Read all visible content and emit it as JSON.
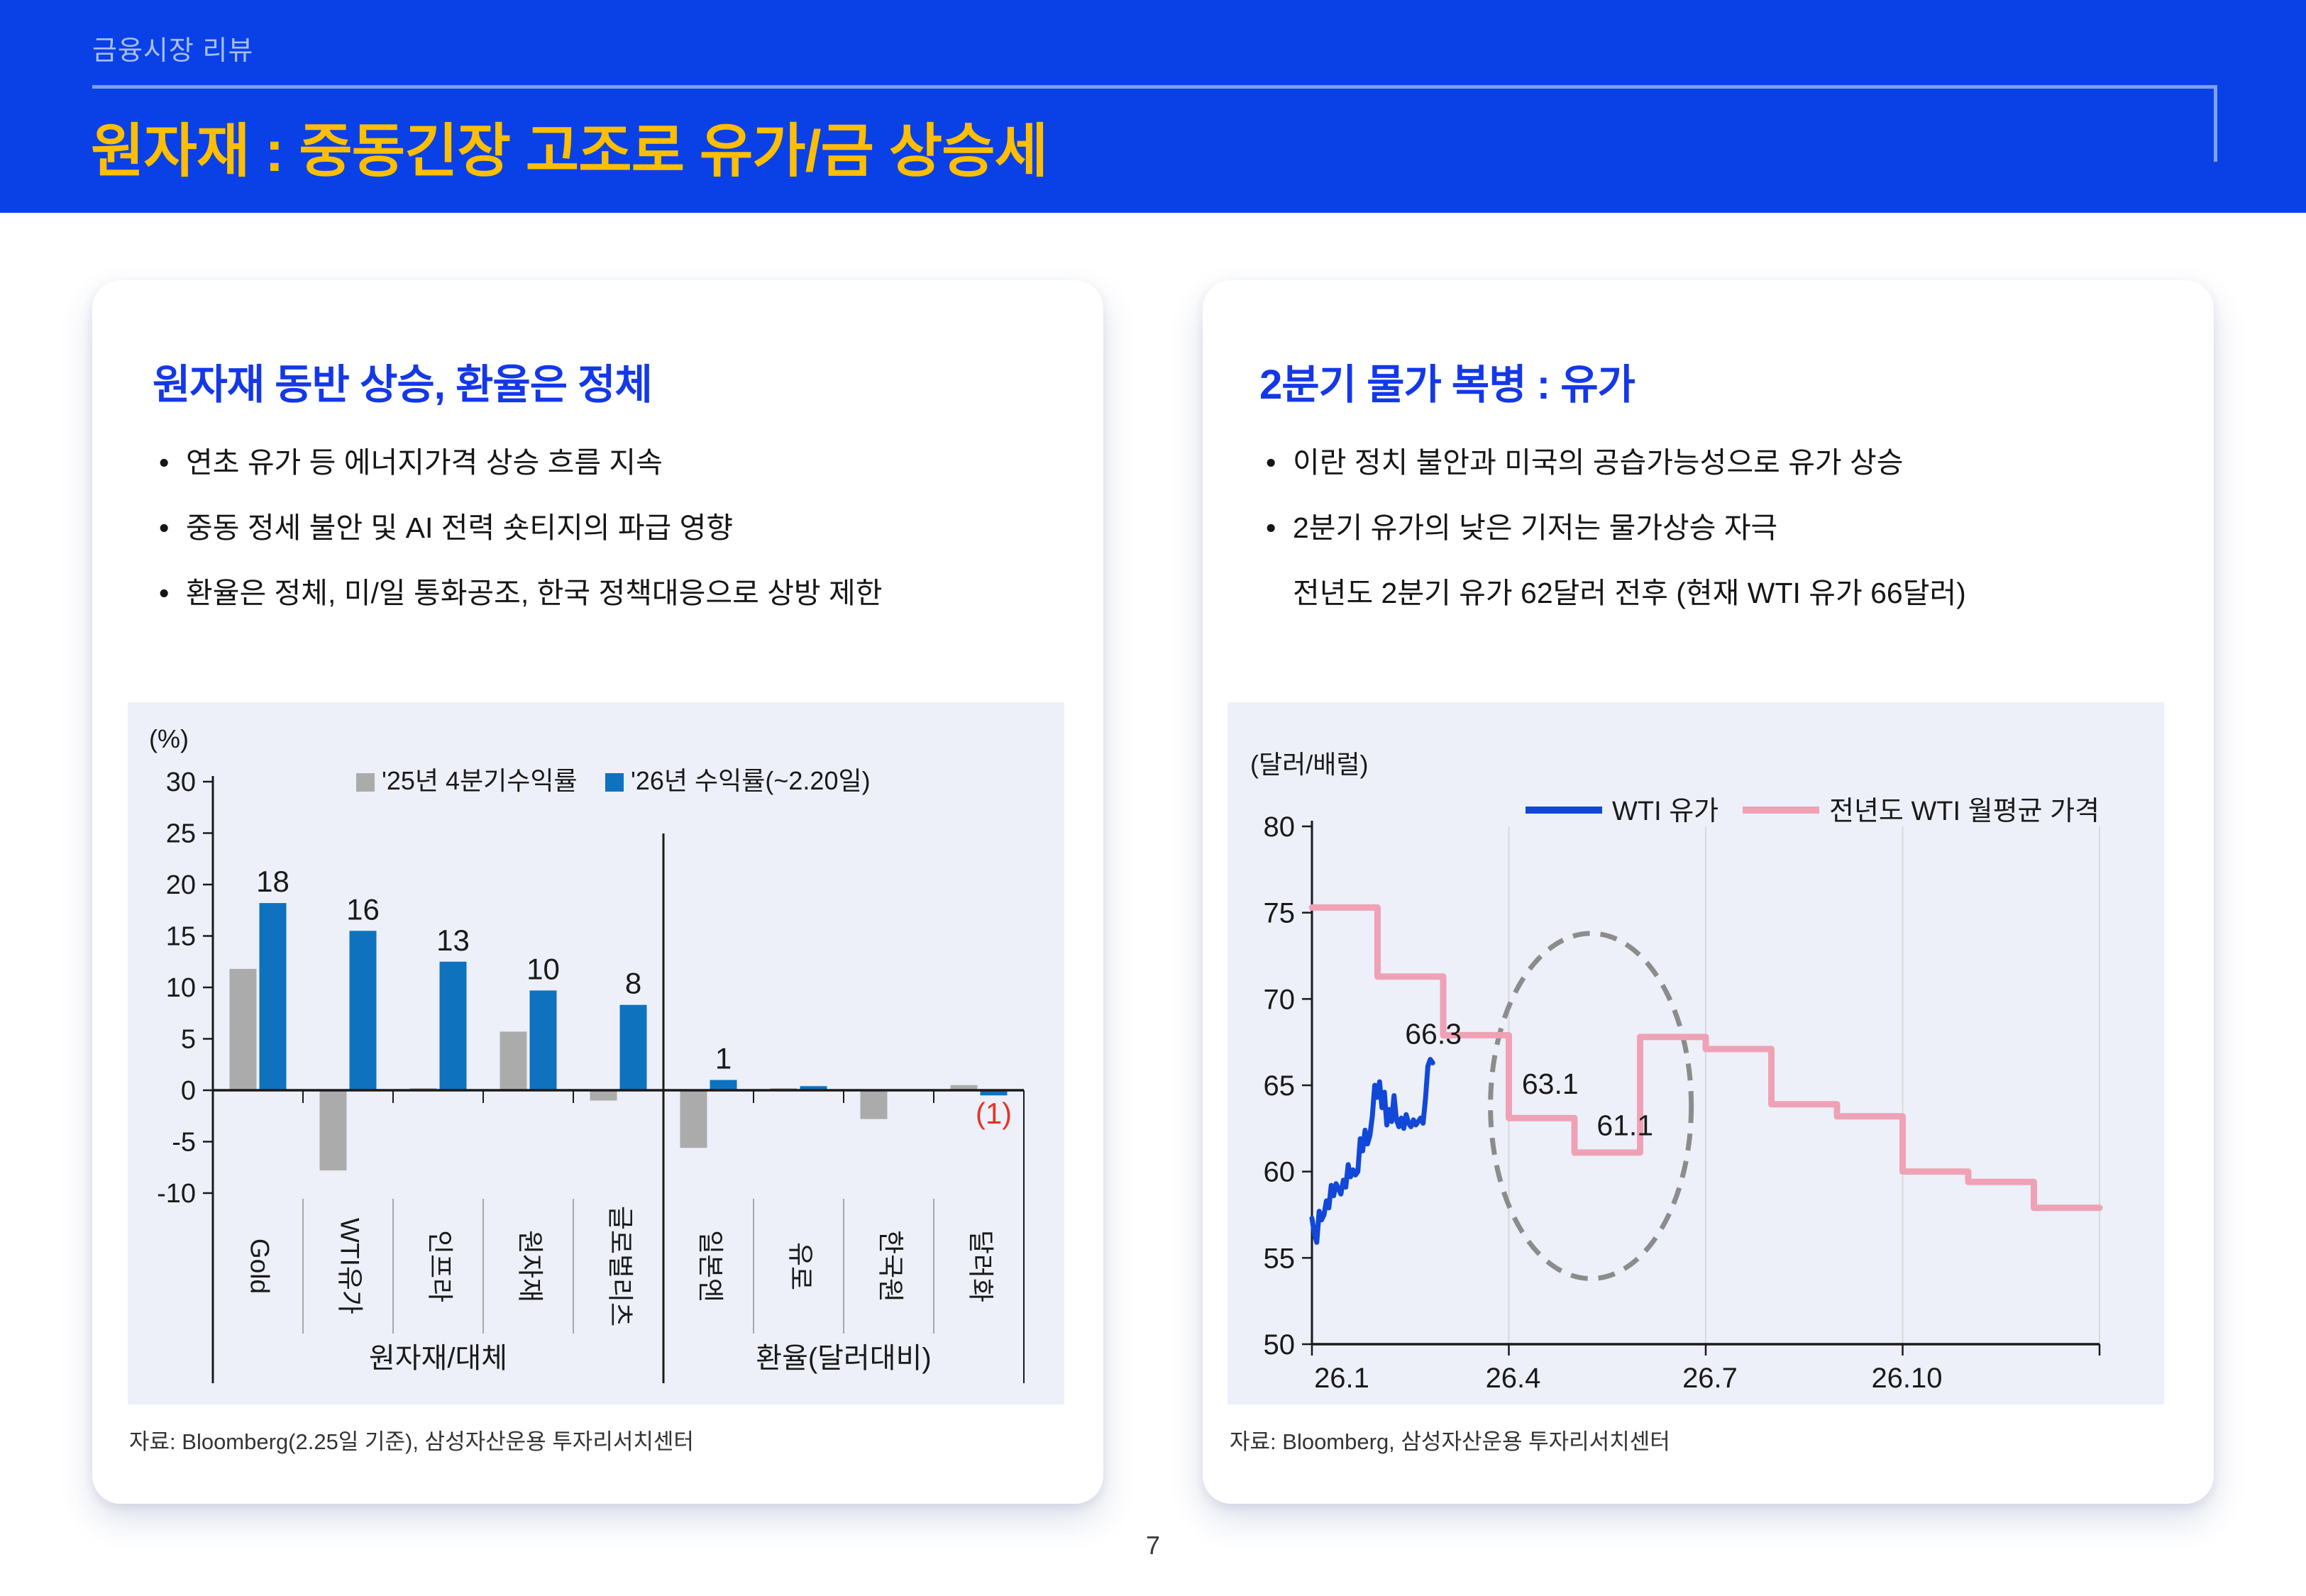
{
  "header": {
    "kicker": "금융시장 리뷰",
    "title": "원자재 : 중동긴장 고조로 유가/금 상승세"
  },
  "page_number": "7",
  "left_card": {
    "heading": "원자재 동반 상승, 환율은 정체",
    "bullets": [
      "연초 유가 등 에너지가격 상승 흐름 지속",
      "중동 정세 불안 및 AI 전력 숏티지의 파급 영향",
      "환율은 정체, 미/일 통화공조, 한국 정책대응으로 상방 제한"
    ],
    "source": "자료: Bloomberg(2.25일 기준), 삼성자산운용 투자리서치센터"
  },
  "right_card": {
    "heading": "2분기 물가 복병 : 유가",
    "bullets": [
      "이란 정치 불안과 미국의 공습가능성으로 유가 상승",
      "2분기 유가의 낮은 기저는 물가상승 자극"
    ],
    "sub_line": "전년도 2분기 유가 62달러 전후 (현재 WTI 유가 66달러)",
    "source": "자료: Bloomberg, 삼성자산운용 투자리서치센터"
  },
  "colors": {
    "header_bg": "#0A41E6",
    "title_gold": "#FFBE00",
    "kicker_blue": "#A9BEF4",
    "rule_blue": "#7FA0EE",
    "heading_blue": "#1438E8",
    "text": "#161616",
    "chart_bg": "#EDF0F9",
    "bar_gray": "#ABABAB",
    "bar_blue": "#0F72BE",
    "line_blue": "#1148D8",
    "line_pink": "#EFA2B5",
    "ellipse_gray": "#8C8C8C",
    "label_red": "#E63326",
    "axis": "#1a1a1a",
    "grid": "#D9D9D9",
    "band_sep": "#A8A8A8"
  },
  "chart_data": [
    {
      "type": "bar",
      "unit": "(%)",
      "categories": [
        "Gold",
        "WTI유가",
        "인프라",
        "원자재",
        "글로벌리츠",
        "일본엔",
        "유로",
        "한국원",
        "달러화"
      ],
      "series": [
        {
          "name": "'25년 4분기수익률",
          "color_key": "bar_gray",
          "values": [
            11.8,
            -7.8,
            0.2,
            5.7,
            -1.0,
            -5.6,
            0.2,
            -2.8,
            0.5
          ]
        },
        {
          "name": "'26년 수익률(~2.20일)",
          "color_key": "bar_blue",
          "values": [
            18.2,
            15.5,
            12.5,
            9.7,
            8.3,
            1.0,
            0.4,
            0,
            -0.5
          ]
        }
      ],
      "value_labels": [
        "18",
        "16",
        "13",
        "10",
        "8",
        "1",
        "",
        "",
        "(1)"
      ],
      "red_labels": [
        "(1)"
      ],
      "groups": [
        {
          "label": "원자재/대체",
          "count": 5
        },
        {
          "label": "환율(달러대비)",
          "count": 4
        }
      ],
      "yticks": [
        30,
        25,
        20,
        15,
        10,
        5,
        0,
        -5,
        -10
      ],
      "ylim": [
        -10,
        30
      ],
      "grid": false,
      "legend_position": "top-center"
    },
    {
      "type": "line",
      "unit": "(달러/배럴)",
      "yticks": [
        80,
        75,
        70,
        65,
        60,
        55,
        50
      ],
      "ylim": [
        50,
        80
      ],
      "xticks": [
        "26.1",
        "26.4",
        "26.7",
        "26.10"
      ],
      "xtick_months": [
        0,
        3,
        6,
        9
      ],
      "gridline_months": [
        3,
        6,
        9,
        12
      ],
      "x_range_months": [
        0,
        12
      ],
      "grid": true,
      "legend_position": "top-right",
      "series": [
        {
          "name": "WTI 유가",
          "color_key": "line_blue",
          "kind": "daily",
          "start_month": 0,
          "end_month": 1.84,
          "values": [
            57.3,
            56.4,
            55.9,
            57.7,
            57.2,
            57.5,
            58.3,
            57.9,
            59.2,
            58.6,
            59.3,
            59.0,
            58.7,
            59.5,
            59.1,
            60.4,
            59.7,
            60.1,
            59.8,
            60.0,
            61.9,
            61.2,
            62.4,
            61.6,
            62.1,
            63.2,
            65.0,
            64.3,
            65.2,
            63.7,
            64.6,
            62.7,
            63.6,
            62.9,
            64.4,
            63.0,
            62.6,
            63.1,
            62.5,
            63.3,
            62.8,
            62.6,
            63.0,
            62.7,
            62.9,
            63.1,
            62.8,
            64.2,
            66.1,
            66.5,
            66.3
          ]
        },
        {
          "name": "전년도 WTI 월평균 가격",
          "color_key": "line_pink",
          "kind": "monthly-step",
          "months": [
            "1",
            "2",
            "3",
            "4",
            "5",
            "6",
            "7",
            "8",
            "9",
            "10",
            "11",
            "12"
          ],
          "values": [
            75.3,
            71.3,
            67.9,
            63.1,
            61.1,
            67.8,
            67.1,
            63.9,
            63.2,
            60.0,
            59.4,
            57.9
          ]
        }
      ],
      "annotations": [
        {
          "text": "66.3",
          "month": 1.85,
          "value": 67.4
        },
        {
          "text": "63.1",
          "month": 3.63,
          "value": 64.5
        },
        {
          "text": "61.1",
          "month": 4.77,
          "value": 62.1
        }
      ],
      "highlight_ellipse": {
        "center_month": 4.25,
        "center_value": 63.8,
        "rx_months": 1.53,
        "ry_values": 10.0
      }
    }
  ]
}
